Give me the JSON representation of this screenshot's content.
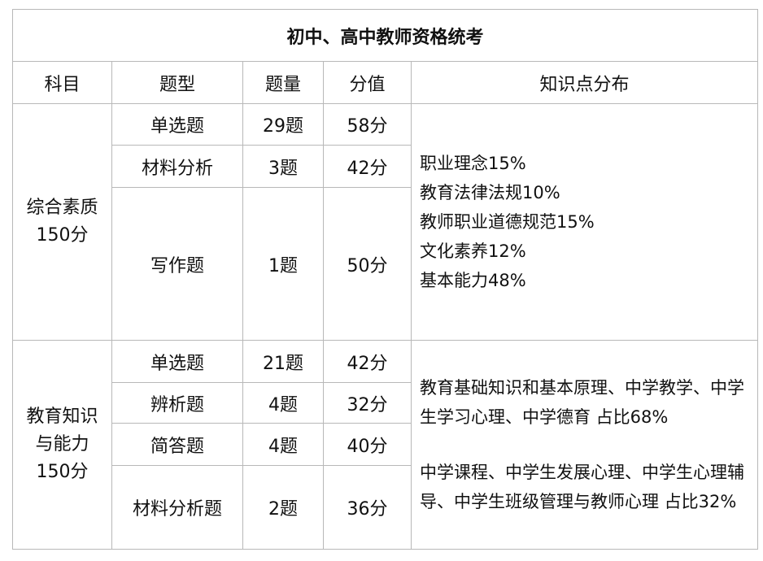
{
  "title": "初中、高中教师资格统考",
  "headers": [
    "科目",
    "题型",
    "题量",
    "分值",
    "知识点分布"
  ],
  "sections": [
    {
      "subject": "综合素质",
      "total": "150分",
      "rows": [
        {
          "type": "单选题",
          "count": "29题",
          "score": "58分"
        },
        {
          "type": "材料分析",
          "count": "3题",
          "score": "42分"
        },
        {
          "type": "写作题",
          "count": "1题",
          "score": "50分"
        }
      ],
      "knowledge": [
        "职业理念15%",
        "教育法律法规10%",
        "教师职业道德规范15%",
        "文化素养12%",
        "基本能力48%"
      ]
    },
    {
      "subject_line1": "教育知识",
      "subject_line2": "与能力",
      "total": "150分",
      "rows": [
        {
          "type": "单选题",
          "count": "21题",
          "score": "42分"
        },
        {
          "type": "辨析题",
          "count": "4题",
          "score": "32分"
        },
        {
          "type": "简答题",
          "count": "4题",
          "score": "40分"
        },
        {
          "type": "材料分析题",
          "count": "2题",
          "score": "36分"
        }
      ],
      "knowledge": [
        "教育基础知识和基本原理、中学教学、中学生学习心理、中学德育 占比68%",
        "中学课程、中学生发展心理、中学生心理辅导、中学生班级管理与教师心理 占比32%"
      ]
    }
  ]
}
